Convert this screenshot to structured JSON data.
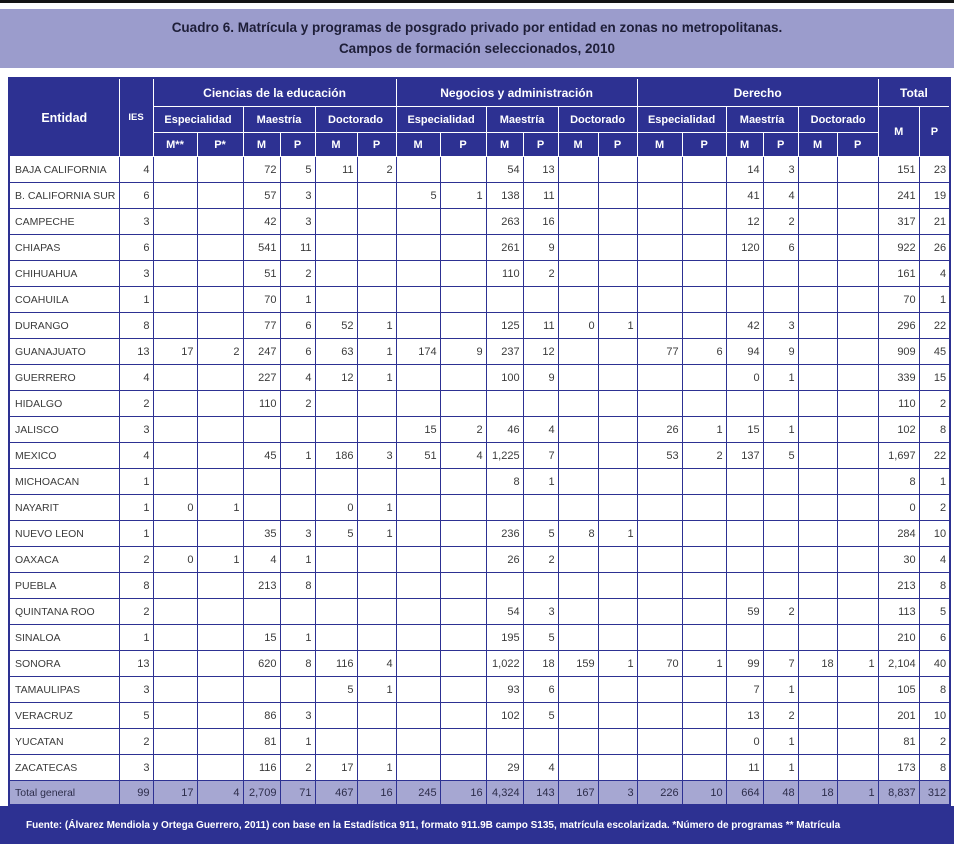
{
  "title": {
    "line1": "Cuadro 6. Matrícula y programas de posgrado privado por entidad en zonas no metropolitanas.",
    "line2": "Campos de formación seleccionados, 2010"
  },
  "table": {
    "header": {
      "entidad": "Entidad",
      "ies": "IES",
      "groups": [
        {
          "label": "Ciencias de la educación",
          "sublabels": [
            "Especialidad",
            "Maestría",
            "Doctorado"
          ],
          "mp": [
            "M**",
            "P*",
            "M",
            "P",
            "M",
            "P"
          ]
        },
        {
          "label": "Negocios y administración",
          "sublabels": [
            "Especialidad",
            "Maestría",
            "Doctorado"
          ],
          "mp": [
            "M",
            "P",
            "M",
            "P",
            "M",
            "P"
          ]
        },
        {
          "label": "Derecho",
          "sublabels": [
            "Especialidad",
            "Maestría",
            "Doctorado"
          ],
          "mp": [
            "M",
            "P",
            "M",
            "P",
            "M",
            "P"
          ]
        }
      ],
      "total_label": "Total",
      "total_mp": [
        "M",
        "P"
      ]
    },
    "rows": [
      {
        "entidad": "BAJA CALIFORNIA",
        "ies": "4",
        "values": [
          "",
          "",
          "72",
          "5",
          "11",
          "2",
          "",
          "",
          "54",
          "13",
          "",
          "",
          "",
          "",
          "14",
          "3",
          "",
          "",
          "151",
          "23"
        ]
      },
      {
        "entidad": "B. CALIFORNIA SUR",
        "ies": "6",
        "values": [
          "",
          "",
          "57",
          "3",
          "",
          "",
          "5",
          "1",
          "138",
          "11",
          "",
          "",
          "",
          "",
          "41",
          "4",
          "",
          "",
          "241",
          "19"
        ]
      },
      {
        "entidad": "CAMPECHE",
        "ies": "3",
        "values": [
          "",
          "",
          "42",
          "3",
          "",
          "",
          "",
          "",
          "263",
          "16",
          "",
          "",
          "",
          "",
          "12",
          "2",
          "",
          "",
          "317",
          "21"
        ]
      },
      {
        "entidad": "CHIAPAS",
        "ies": "6",
        "values": [
          "",
          "",
          "541",
          "11",
          "",
          "",
          "",
          "",
          "261",
          "9",
          "",
          "",
          "",
          "",
          "120",
          "6",
          "",
          "",
          "922",
          "26"
        ]
      },
      {
        "entidad": "CHIHUAHUA",
        "ies": "3",
        "values": [
          "",
          "",
          "51",
          "2",
          "",
          "",
          "",
          "",
          "110",
          "2",
          "",
          "",
          "",
          "",
          "",
          "",
          "",
          "",
          "161",
          "4"
        ]
      },
      {
        "entidad": "COAHUILA",
        "ies": "1",
        "values": [
          "",
          "",
          "70",
          "1",
          "",
          "",
          "",
          "",
          "",
          "",
          "",
          "",
          "",
          "",
          "",
          "",
          "",
          "",
          "70",
          "1"
        ]
      },
      {
        "entidad": "DURANGO",
        "ies": "8",
        "values": [
          "",
          "",
          "77",
          "6",
          "52",
          "1",
          "",
          "",
          "125",
          "11",
          "0",
          "1",
          "",
          "",
          "42",
          "3",
          "",
          "",
          "296",
          "22"
        ]
      },
      {
        "entidad": "GUANAJUATO",
        "ies": "13",
        "values": [
          "17",
          "2",
          "247",
          "6",
          "63",
          "1",
          "174",
          "9",
          "237",
          "12",
          "",
          "",
          "77",
          "6",
          "94",
          "9",
          "",
          "",
          "909",
          "45"
        ]
      },
      {
        "entidad": "GUERRERO",
        "ies": "4",
        "values": [
          "",
          "",
          "227",
          "4",
          "12",
          "1",
          "",
          "",
          "100",
          "9",
          "",
          "",
          "",
          "",
          "0",
          "1",
          "",
          "",
          "339",
          "15"
        ]
      },
      {
        "entidad": "HIDALGO",
        "ies": "2",
        "values": [
          "",
          "",
          "110",
          "2",
          "",
          "",
          "",
          "",
          "",
          "",
          "",
          "",
          "",
          "",
          "",
          "",
          "",
          "",
          "110",
          "2"
        ]
      },
      {
        "entidad": "JALISCO",
        "ies": "3",
        "values": [
          "",
          "",
          "",
          "",
          "",
          "",
          "15",
          "2",
          "46",
          "4",
          "",
          "",
          "26",
          "1",
          "15",
          "1",
          "",
          "",
          "102",
          "8"
        ]
      },
      {
        "entidad": "MEXICO",
        "ies": "4",
        "values": [
          "",
          "",
          "45",
          "1",
          "186",
          "3",
          "51",
          "4",
          "1,225",
          "7",
          "",
          "",
          "53",
          "2",
          "137",
          "5",
          "",
          "",
          "1,697",
          "22"
        ]
      },
      {
        "entidad": "MICHOACAN",
        "ies": "1",
        "values": [
          "",
          "",
          "",
          "",
          "",
          "",
          "",
          "",
          "8",
          "1",
          "",
          "",
          "",
          "",
          "",
          "",
          "",
          "",
          "8",
          "1"
        ]
      },
      {
        "entidad": "NAYARIT",
        "ies": "1",
        "values": [
          "0",
          "1",
          "",
          "",
          "0",
          "1",
          "",
          "",
          "",
          "",
          "",
          "",
          "",
          "",
          "",
          "",
          "",
          "",
          "0",
          "2"
        ]
      },
      {
        "entidad": "NUEVO LEON",
        "ies": "1",
        "values": [
          "",
          "",
          "35",
          "3",
          "5",
          "1",
          "",
          "",
          "236",
          "5",
          "8",
          "1",
          "",
          "",
          "",
          "",
          "",
          "",
          "284",
          "10"
        ]
      },
      {
        "entidad": "OAXACA",
        "ies": "2",
        "values": [
          "0",
          "1",
          "4",
          "1",
          "",
          "",
          "",
          "",
          "26",
          "2",
          "",
          "",
          "",
          "",
          "",
          "",
          "",
          "",
          "30",
          "4"
        ]
      },
      {
        "entidad": "PUEBLA",
        "ies": "8",
        "values": [
          "",
          "",
          "213",
          "8",
          "",
          "",
          "",
          "",
          "",
          "",
          "",
          "",
          "",
          "",
          "",
          "",
          "",
          "",
          "213",
          "8"
        ]
      },
      {
        "entidad": "QUINTANA ROO",
        "ies": "2",
        "values": [
          "",
          "",
          "",
          "",
          "",
          "",
          "",
          "",
          "54",
          "3",
          "",
          "",
          "",
          "",
          "59",
          "2",
          "",
          "",
          "113",
          "5"
        ]
      },
      {
        "entidad": "SINALOA",
        "ies": "1",
        "values": [
          "",
          "",
          "15",
          "1",
          "",
          "",
          "",
          "",
          "195",
          "5",
          "",
          "",
          "",
          "",
          "",
          "",
          "",
          "",
          "210",
          "6"
        ]
      },
      {
        "entidad": "SONORA",
        "ies": "13",
        "values": [
          "",
          "",
          "620",
          "8",
          "116",
          "4",
          "",
          "",
          "1,022",
          "18",
          "159",
          "1",
          "70",
          "1",
          "99",
          "7",
          "18",
          "1",
          "2,104",
          "40"
        ]
      },
      {
        "entidad": "TAMAULIPAS",
        "ies": "3",
        "values": [
          "",
          "",
          "",
          "",
          "5",
          "1",
          "",
          "",
          "93",
          "6",
          "",
          "",
          "",
          "",
          "7",
          "1",
          "",
          "",
          "105",
          "8"
        ]
      },
      {
        "entidad": "VERACRUZ",
        "ies": "5",
        "values": [
          "",
          "",
          "86",
          "3",
          "",
          "",
          "",
          "",
          "102",
          "5",
          "",
          "",
          "",
          "",
          "13",
          "2",
          "",
          "",
          "201",
          "10"
        ]
      },
      {
        "entidad": "YUCATAN",
        "ies": "2",
        "values": [
          "",
          "",
          "81",
          "1",
          "",
          "",
          "",
          "",
          "",
          "",
          "",
          "",
          "",
          "",
          "0",
          "1",
          "",
          "",
          "81",
          "2"
        ]
      },
      {
        "entidad": "ZACATECAS",
        "ies": "3",
        "values": [
          "",
          "",
          "116",
          "2",
          "17",
          "1",
          "",
          "",
          "29",
          "4",
          "",
          "",
          "",
          "",
          "11",
          "1",
          "",
          "",
          "173",
          "8"
        ]
      }
    ],
    "total_row": {
      "entidad": "Total general",
      "ies": "99",
      "values": [
        "17",
        "4",
        "2,709",
        "71",
        "467",
        "16",
        "245",
        "16",
        "4,324",
        "143",
        "167",
        "3",
        "226",
        "10",
        "664",
        "48",
        "18",
        "1",
        "8,837",
        "312"
      ]
    }
  },
  "footer": {
    "source": "Fuente: (Álvarez Mendiola y Ortega Guerrero, 2011) con base en la Estadística 911, formato 911.9B campo S135, matrícula escolarizada. *Número de programas  ** Matrícula"
  },
  "colors": {
    "navy": "#2d3192",
    "lavender": "#9b9ccc",
    "total_row_bg": "#a6a7d2"
  }
}
